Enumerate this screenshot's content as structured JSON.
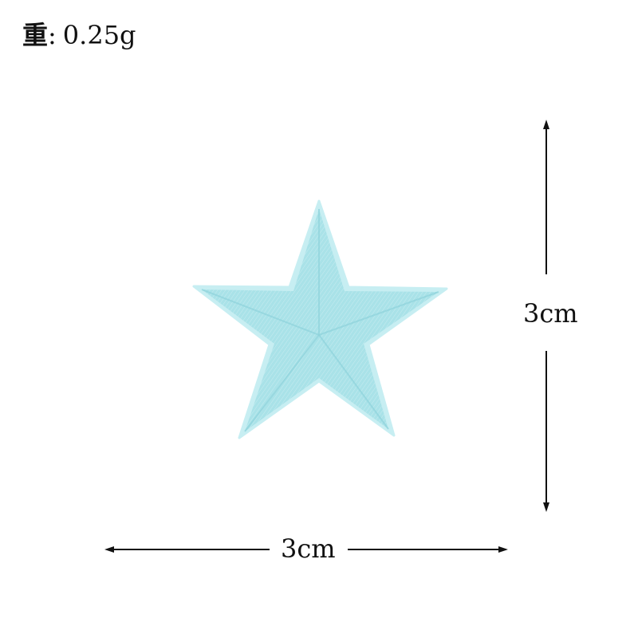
{
  "weight": {
    "label": "重",
    "separator": ":",
    "value": "0.25g"
  },
  "product": {
    "icon": "embroidered-star-patch",
    "color": "#a9e2e8",
    "shade_color": "#8fd3dc",
    "edge_color": "#c7eef2"
  },
  "dimensions": {
    "width_label": "3cm",
    "height_label": "3cm"
  }
}
